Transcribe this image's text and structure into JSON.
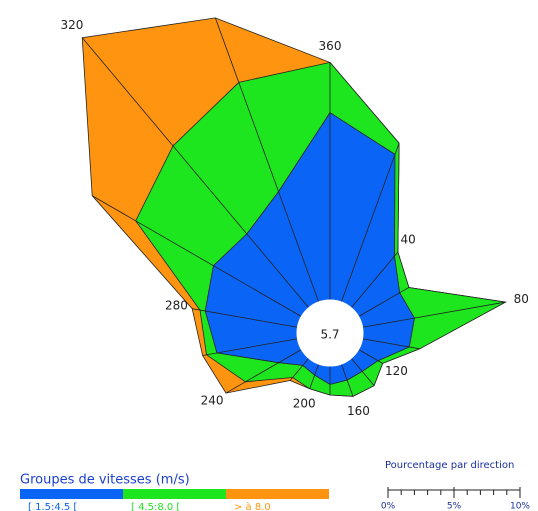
{
  "chart_data": {
    "type": "windrose",
    "directions": [
      "360",
      null,
      "40",
      null,
      "80",
      null,
      "120",
      null,
      "160",
      null,
      "200",
      null,
      "240",
      null,
      "280",
      null,
      "320",
      null
    ],
    "calm": 5.7,
    "series": [
      {
        "name": "[ 1.5:4.5 [",
        "color": "#0a64f5",
        "values": [
          14.2,
          11.9,
          5.1,
          3.6,
          4.0,
          3.6,
          1.7,
          1.3,
          1.3,
          1.4,
          0.9,
          0.7,
          2.0,
          6.2,
          7.1,
          7.7,
          7.3,
          8.9
        ]
      },
      {
        "name": "[ 4.5:8.0 [",
        "color": "#1ee61e",
        "values": [
          3.8,
          0.9,
          0.4,
          0.8,
          7.0,
          0.8,
          0.4,
          1.4,
          1.3,
          0.8,
          1.1,
          1.2,
          2.9,
          0.8,
          0.4,
          6.8,
          8.7,
          8.8
        ]
      },
      {
        "name": "> à 8.0",
        "color": "#ff9410",
        "values": [
          0,
          0,
          0,
          0,
          0,
          0,
          0,
          0,
          0,
          0,
          0,
          0.3,
          1.7,
          0.3,
          0.6,
          3.8,
          10.7,
          5.2
        ]
      }
    ],
    "legend_title": "Groupes de vitesses (m/s)",
    "scale_title": "Pourcentage par direction",
    "scale_lim": [
      0,
      10
    ],
    "scale_ticks": [
      {
        "value": 0,
        "label": "0%"
      },
      {
        "value": 5,
        "label": "5%"
      },
      {
        "value": 10,
        "label": "10%"
      }
    ],
    "scale_minor_ticks": [
      0,
      1,
      2,
      3,
      4,
      5,
      6,
      7,
      8,
      9,
      10
    ]
  }
}
